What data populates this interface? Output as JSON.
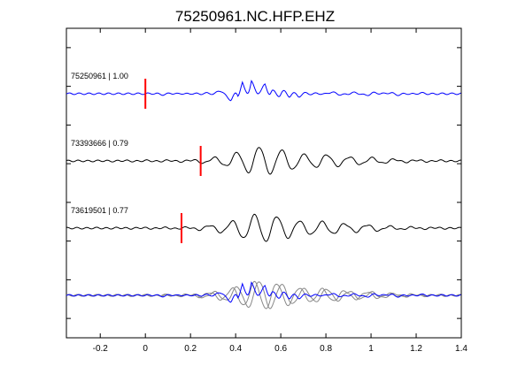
{
  "chart_data": {
    "type": "line",
    "title": "75250961.NC.HFP.EHZ",
    "xlabel": "",
    "ylabel": "",
    "xlim": [
      -0.35,
      1.4
    ],
    "x_ticks": [
      -0.2,
      0,
      0.2,
      0.4,
      0.6,
      0.8,
      1,
      1.2,
      1.4
    ],
    "x_tick_labels": [
      "-0.2",
      "0",
      "0.2",
      "0.4",
      "0.6",
      "0.8",
      "1",
      "1.2",
      "1.4"
    ],
    "y_ticks": 8,
    "grid": false,
    "colors": {
      "reference": "#0000ff",
      "trace": "#000000",
      "overlay": "#888888",
      "pick": "#ff0000"
    },
    "traces": [
      {
        "label": "75250961 | 1.00",
        "color": "#0000ff",
        "pick_time": 0.0,
        "samples": [
          [
            -0.35,
            0.0
          ],
          [
            0.0,
            0.0
          ],
          [
            0.05,
            0.02
          ],
          [
            0.1,
            0.08
          ],
          [
            0.15,
            -0.05
          ],
          [
            0.2,
            0.05
          ],
          [
            0.25,
            -0.05
          ],
          [
            0.3,
            0.0
          ],
          [
            0.35,
            0.3
          ],
          [
            0.38,
            0.4
          ],
          [
            0.41,
            -0.3
          ],
          [
            0.43,
            0.8
          ],
          [
            0.45,
            0.2
          ],
          [
            0.47,
            -0.9
          ],
          [
            0.5,
            0.2
          ],
          [
            0.53,
            0.6
          ],
          [
            0.56,
            -0.4
          ],
          [
            0.6,
            0.5
          ],
          [
            0.64,
            -0.3
          ],
          [
            0.68,
            0.2
          ],
          [
            0.75,
            -0.1
          ],
          [
            0.8,
            0.1
          ],
          [
            0.9,
            0.05
          ],
          [
            1.0,
            0.1
          ],
          [
            1.1,
            -0.1
          ],
          [
            1.2,
            0.05
          ],
          [
            1.3,
            0.0
          ],
          [
            1.4,
            0.0
          ]
        ]
      },
      {
        "label": "73393666 | 0.79",
        "color": "#000000",
        "pick_time": 0.245,
        "samples": [
          [
            -0.35,
            0.0
          ],
          [
            0.1,
            0.03
          ],
          [
            0.2,
            0.05
          ],
          [
            0.3,
            0.2
          ],
          [
            0.35,
            0.3
          ],
          [
            0.4,
            0.5
          ],
          [
            0.45,
            0.7
          ],
          [
            0.5,
            0.9
          ],
          [
            0.55,
            0.8
          ],
          [
            0.6,
            0.7
          ],
          [
            0.7,
            0.4
          ],
          [
            0.8,
            0.4
          ],
          [
            0.9,
            0.25
          ],
          [
            1.0,
            0.2
          ],
          [
            1.1,
            0.1
          ],
          [
            1.2,
            0.05
          ],
          [
            1.3,
            0.03
          ],
          [
            1.4,
            0.0
          ]
        ]
      },
      {
        "label": "73619501 | 0.77",
        "color": "#000000",
        "pick_time": 0.16,
        "samples": [
          [
            -0.35,
            0.0
          ],
          [
            0.1,
            0.03
          ],
          [
            0.2,
            0.05
          ],
          [
            0.3,
            0.2
          ],
          [
            0.35,
            0.3
          ],
          [
            0.4,
            0.5
          ],
          [
            0.45,
            0.7
          ],
          [
            0.5,
            0.9
          ],
          [
            0.55,
            0.8
          ],
          [
            0.6,
            0.7
          ],
          [
            0.7,
            0.4
          ],
          [
            0.8,
            0.4
          ],
          [
            0.9,
            0.25
          ],
          [
            1.0,
            0.2
          ],
          [
            1.1,
            0.1
          ],
          [
            1.2,
            0.05
          ],
          [
            1.3,
            0.03
          ],
          [
            1.4,
            0.0
          ]
        ]
      }
    ],
    "stack_overlay": true
  }
}
